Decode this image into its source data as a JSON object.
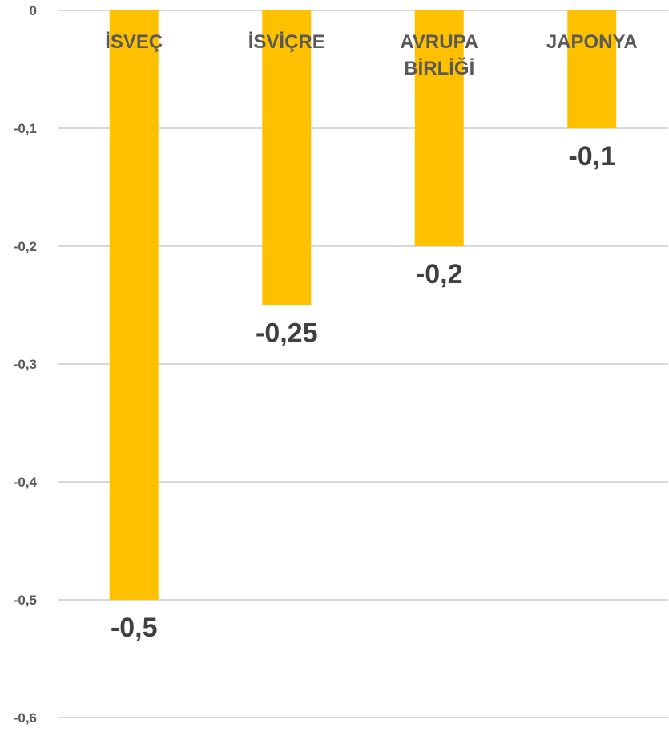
{
  "chart_data": {
    "type": "bar",
    "categories": [
      "İSVEÇ",
      "İSVİÇRE",
      "AVRUPA BİRLİĞİ",
      "JAPONYA"
    ],
    "category_label_lines": [
      [
        "İSVEÇ"
      ],
      [
        "İSVİÇRE"
      ],
      [
        "AVRUPA",
        "BİRLİĞİ"
      ],
      [
        "JAPONYA"
      ]
    ],
    "values": [
      -0.5,
      -0.25,
      -0.2,
      -0.1
    ],
    "data_labels": [
      "-0,5",
      "-0,25",
      "-0,2",
      "-0,1"
    ],
    "title": "",
    "xlabel": "",
    "ylabel": "",
    "ylim": [
      -0.6,
      0
    ],
    "y_ticks": [
      0,
      -0.1,
      -0.2,
      -0.3,
      -0.4,
      -0.5,
      -0.6
    ],
    "y_tick_labels": [
      "0",
      "-0,1",
      "-0,2",
      "-0,3",
      "-0,4",
      "-0,5",
      "-0,6"
    ],
    "grid": true,
    "legend": "none",
    "colors": {
      "bar": "#ffc000",
      "grid": "#d9d9d9",
      "tick_text": "#595959",
      "category_text": "#595959",
      "data_label_text": "#404040",
      "background": "#ffffff"
    }
  }
}
